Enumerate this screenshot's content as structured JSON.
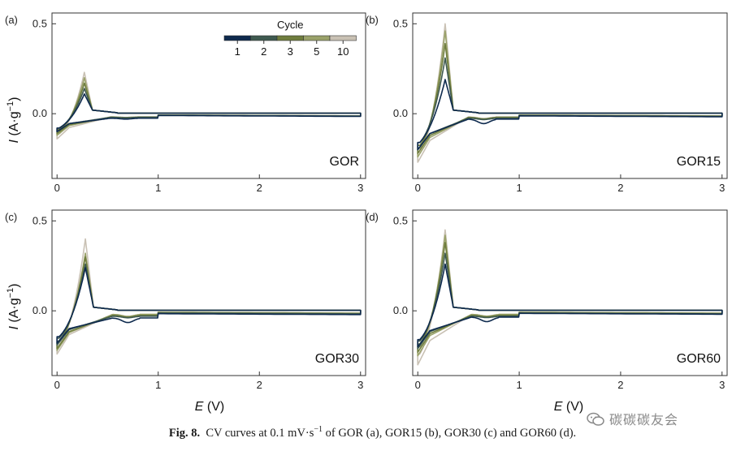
{
  "chart_data": {
    "type": "line",
    "figure_caption": {
      "label": "Fig. 8.",
      "text": "CV curves at 0.1 mV·s",
      "superscript": "−1",
      "rest": " of GOR (a), GOR15 (b), GOR30 (c) and GOR60 (d)."
    },
    "xlabel": "E",
    "xlabel_unit": " (V)",
    "ylabel": "I",
    "ylabel_unit": " (A·g",
    "ylabel_sup": "−1",
    "ylabel_close": ")",
    "xlim": [
      -0.05,
      3.05
    ],
    "ylim": [
      -0.36,
      0.56
    ],
    "xticks": [
      0,
      1,
      2,
      3
    ],
    "yticks": [
      -0.0,
      0.5
    ],
    "ytick_labels": [
      "0.0",
      "0.5"
    ],
    "legend": {
      "title": "Cycle",
      "placement": "top-right of panel (a)",
      "labels": [
        "1",
        "2",
        "3",
        "5",
        "10"
      ],
      "colors": [
        "#0e2a4e",
        "#3f5a50",
        "#6f7d3e",
        "#9aa26a",
        "#c9c1b4"
      ]
    },
    "series_cycles": [
      "1",
      "2",
      "3",
      "5",
      "10"
    ],
    "series_colors": [
      "#0e2a4e",
      "#3f5a50",
      "#6f7d3e",
      "#9aa26a",
      "#c9c1b4"
    ],
    "panels": [
      {
        "label": "(a)",
        "sample": "GOR",
        "peak_ox_x": 0.27,
        "peak_ox_values": [
          0.11,
          0.14,
          0.17,
          0.2,
          0.23
        ],
        "red_min_x": 0.05,
        "red_min_values": [
          -0.1,
          -0.1,
          -0.11,
          -0.12,
          -0.14
        ],
        "shoulder_x": 0.68,
        "shoulder_value": -0.03,
        "base_values": [
          -0.025,
          -0.02,
          -0.02,
          -0.018,
          -0.018
        ]
      },
      {
        "label": "(b)",
        "sample": "GOR15",
        "peak_ox_x": 0.27,
        "peak_ox_values": [
          0.19,
          0.31,
          0.39,
          0.46,
          0.5
        ],
        "red_min_x": 0.05,
        "red_min_values": [
          -0.2,
          -0.2,
          -0.22,
          -0.24,
          -0.27
        ],
        "shoulder_x": 0.65,
        "shoulder_value": -0.055,
        "base_values": [
          -0.03,
          -0.025,
          -0.02,
          -0.02,
          -0.018
        ]
      },
      {
        "label": "(c)",
        "sample": "GOR30",
        "peak_ox_x": 0.28,
        "peak_ox_values": [
          0.24,
          0.26,
          0.3,
          0.32,
          0.4
        ],
        "red_min_x": 0.05,
        "red_min_values": [
          -0.18,
          -0.19,
          -0.21,
          -0.22,
          -0.24
        ],
        "shoulder_x": 0.7,
        "shoulder_value": -0.065,
        "base_values": [
          -0.04,
          -0.03,
          -0.025,
          -0.02,
          -0.02
        ]
      },
      {
        "label": "(d)",
        "sample": "GOR60",
        "peak_ox_x": 0.27,
        "peak_ox_values": [
          0.26,
          0.32,
          0.38,
          0.42,
          0.45
        ],
        "red_min_x": 0.05,
        "red_min_values": [
          -0.2,
          -0.21,
          -0.23,
          -0.25,
          -0.3
        ],
        "shoulder_x": 0.68,
        "shoulder_value": -0.06,
        "base_values": [
          -0.035,
          -0.03,
          -0.025,
          -0.02,
          -0.02
        ]
      }
    ]
  },
  "watermark": "碳碳碳友会"
}
